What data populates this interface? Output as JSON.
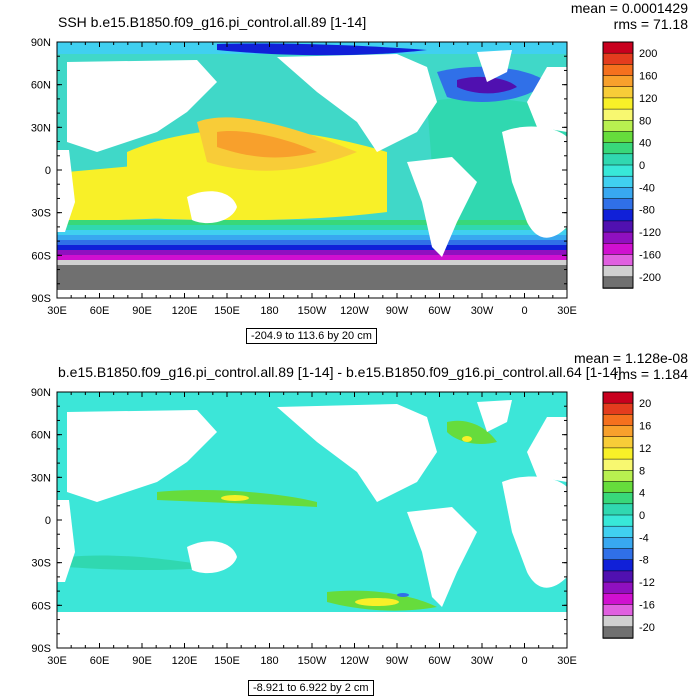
{
  "chart_data": [
    {
      "type": "heatmap",
      "title": "SSH b.e15.B1850.f09_g16.pi_control.all.89 [1-14]",
      "stats": {
        "mean": "mean = 0.0001429",
        "rms": "rms = 71.18"
      },
      "x_ticks": [
        "30E",
        "60E",
        "90E",
        "120E",
        "150E",
        "180",
        "150W",
        "120W",
        "90W",
        "60W",
        "30W",
        "0",
        "30E"
      ],
      "y_ticks": [
        "90N",
        "60N",
        "30N",
        "0",
        "30S",
        "60S",
        "90S"
      ],
      "colorbar_labels": [
        "200",
        "160",
        "120",
        "80",
        "40",
        "0",
        "-40",
        "-80",
        "-120",
        "-160",
        "-200"
      ],
      "colorbar_colors": [
        "#c8001e",
        "#e43c1e",
        "#f5701e",
        "#f8a02c",
        "#f8cc38",
        "#f8f028",
        "#f8f870",
        "#b8f050",
        "#66dc3c",
        "#38d87a",
        "#30d8b0",
        "#38e8d8",
        "#40d0f0",
        "#38a8f0",
        "#3070e8",
        "#1020d8",
        "#5010b0",
        "#9010c0",
        "#d010d0",
        "#e060e0",
        "#d0d0d0",
        "#707070"
      ],
      "range_note": "-204.9 to 113.6 by 20 cm"
    },
    {
      "type": "heatmap",
      "title": "b.e15.B1850.f09_g16.pi_control.all.89 [1-14] - b.e15.B1850.f09_g16.pi_control.all.64 [1-14]",
      "stats": {
        "mean": "mean = 1.128e-08",
        "rms": "rms = 1.184"
      },
      "x_ticks": [
        "30E",
        "60E",
        "90E",
        "120E",
        "150E",
        "180",
        "150W",
        "120W",
        "90W",
        "60W",
        "30W",
        "0",
        "30E"
      ],
      "y_ticks": [
        "90N",
        "60N",
        "30N",
        "0",
        "30S",
        "60S",
        "90S"
      ],
      "colorbar_labels": [
        "20",
        "16",
        "12",
        "8",
        "4",
        "0",
        "-4",
        "-8",
        "-12",
        "-16",
        "-20"
      ],
      "colorbar_colors": [
        "#c8001e",
        "#e43c1e",
        "#f5701e",
        "#f8a02c",
        "#f8cc38",
        "#f8f028",
        "#f8f870",
        "#b8f050",
        "#66dc3c",
        "#38d87a",
        "#30d8b0",
        "#38e8d8",
        "#40d0f0",
        "#38a8f0",
        "#3070e8",
        "#1020d8",
        "#5010b0",
        "#9010c0",
        "#d010d0",
        "#e060e0",
        "#d0d0d0",
        "#707070"
      ],
      "range_note": "-8.921 to 6.922 by 2 cm"
    }
  ]
}
